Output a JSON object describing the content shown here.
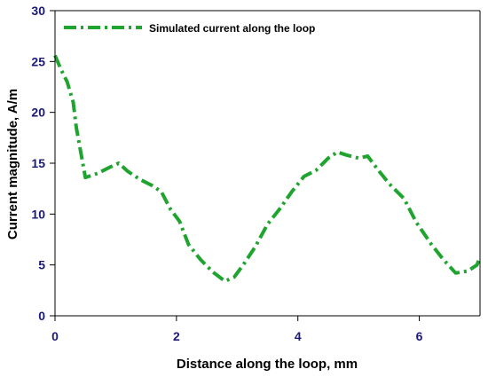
{
  "colors": {
    "series": "#1fa52f",
    "axis": "#000000",
    "tick_label": "#1a1a7a"
  },
  "chart_data": {
    "type": "line",
    "xlabel": "Distance along the loop, mm",
    "ylabel": "Current magnitude, A/m",
    "xlim": [
      0,
      7
    ],
    "ylim": [
      0,
      30
    ],
    "xticks": [
      0,
      2,
      4,
      6
    ],
    "yticks": [
      0,
      5,
      10,
      15,
      20,
      25,
      30
    ],
    "xtick_labels": [
      "0",
      "2",
      "4",
      "6"
    ],
    "ytick_labels": [
      "0",
      "5",
      "10",
      "15",
      "20",
      "25",
      "30"
    ],
    "grid": false,
    "legend_position": "top-left",
    "series": [
      {
        "name": "Simulated current along the loop",
        "line_style": "dash-dot",
        "x": [
          0,
          0.1,
          0.2,
          0.3,
          0.35,
          0.5,
          0.7,
          0.9,
          1.05,
          1.2,
          1.4,
          1.6,
          1.75,
          1.9,
          2.05,
          2.2,
          2.4,
          2.6,
          2.8,
          2.95,
          3.1,
          3.3,
          3.5,
          3.7,
          3.9,
          4.1,
          4.3,
          4.5,
          4.65,
          4.8,
          5.0,
          5.15,
          5.3,
          5.5,
          5.75,
          5.95,
          6.2,
          6.4,
          6.6,
          6.8,
          6.95,
          7.0
        ],
        "y": [
          25.6,
          24.2,
          23.0,
          21.0,
          18.5,
          13.6,
          14.0,
          14.6,
          15.0,
          14.2,
          13.4,
          12.8,
          12.2,
          10.5,
          9.3,
          7.0,
          5.5,
          4.3,
          3.4,
          3.8,
          5.0,
          6.8,
          9.0,
          10.5,
          12.2,
          13.7,
          14.3,
          15.5,
          16.1,
          15.8,
          15.5,
          15.7,
          14.5,
          13.0,
          11.5,
          9.2,
          7.0,
          5.5,
          4.2,
          4.4,
          5.0,
          5.8
        ]
      }
    ]
  }
}
